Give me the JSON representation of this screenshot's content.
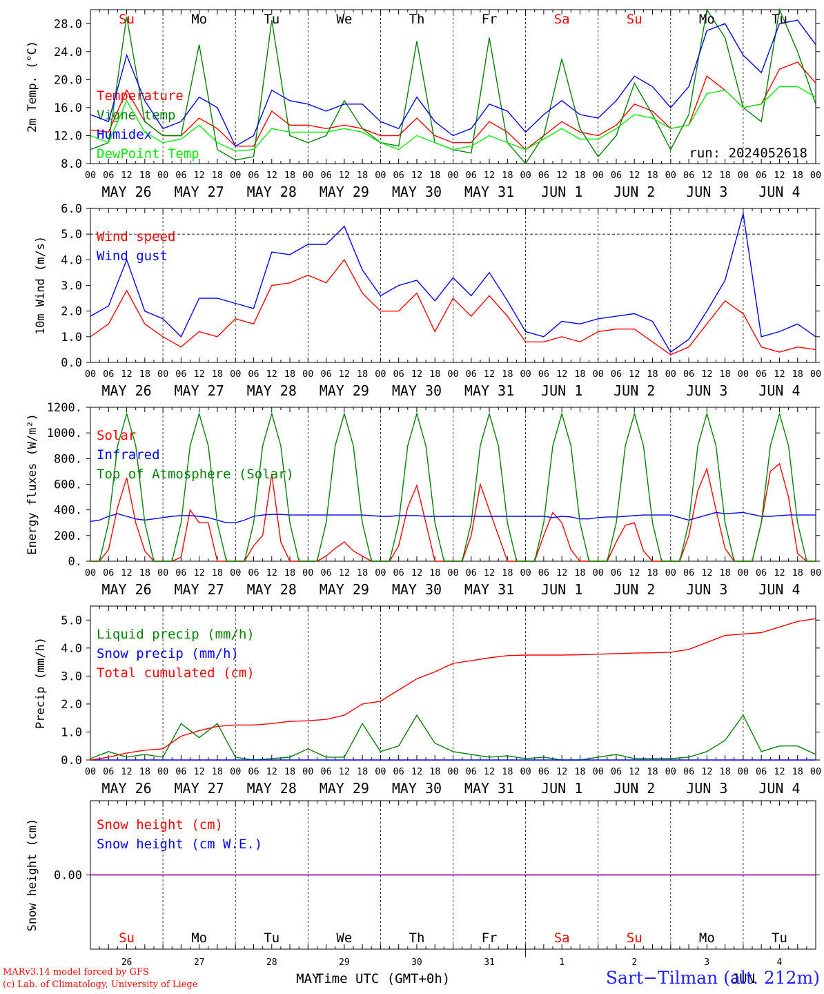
{
  "chart_data": [
    {
      "type": "line",
      "panel": "temperature",
      "ylabel": "2m Temp. (°C)",
      "ylim": [
        8,
        30
      ],
      "yticks": [
        "8.0",
        "12.0",
        "16.0",
        "20.0",
        "24.0",
        "28.0"
      ],
      "yticks_values": [
        8,
        12,
        16,
        20,
        24,
        28
      ],
      "annotation": "run: 2024052618",
      "day_labels": [
        {
          "label": "Su",
          "color": "#ff0000"
        },
        {
          "label": "Mo",
          "color": "#000000"
        },
        {
          "label": "Tu",
          "color": "#000000"
        },
        {
          "label": "We",
          "color": "#000000"
        },
        {
          "label": "Th",
          "color": "#000000"
        },
        {
          "label": "Fr",
          "color": "#000000"
        },
        {
          "label": "Sa",
          "color": "#ff0000"
        },
        {
          "label": "Su",
          "color": "#ff0000"
        },
        {
          "label": "Mo",
          "color": "#000000"
        },
        {
          "label": "Tu",
          "color": "#000000"
        }
      ],
      "x_hours": [
        0,
        6,
        12,
        18,
        24,
        30,
        36,
        42,
        48,
        54,
        60,
        66,
        72,
        78,
        84,
        90,
        96,
        102,
        108,
        114,
        120,
        126,
        132,
        138,
        144,
        150,
        156,
        162,
        168,
        174,
        180,
        186,
        192,
        198,
        204,
        210,
        216,
        222,
        228,
        234,
        240
      ],
      "series": [
        {
          "name": "Temperature",
          "color": "#ff0000",
          "values": [
            12.8,
            12.5,
            18.5,
            14,
            12,
            12,
            14.5,
            13,
            10.5,
            10.5,
            15.5,
            13.5,
            13.5,
            13,
            13.5,
            13,
            12,
            12,
            14.5,
            12,
            11,
            11,
            14,
            12.5,
            10,
            12,
            14,
            12.5,
            12,
            13.5,
            16.5,
            15.5,
            13,
            13.5,
            20.5,
            18.5,
            16,
            16.5,
            21.5,
            22.5,
            19.5
          ]
        },
        {
          "name": "Vigne temp",
          "color": "#008000",
          "values": [
            10,
            11,
            29,
            14,
            12,
            12,
            25,
            10,
            8.5,
            9,
            28.5,
            12,
            11,
            12,
            17,
            13,
            11,
            10.5,
            25.5,
            11,
            10,
            9.5,
            26,
            11,
            8,
            12,
            23,
            13,
            9,
            12,
            19.5,
            15,
            10,
            15,
            30,
            26,
            16,
            14,
            30,
            24,
            16.5
          ]
        },
        {
          "name": "Humidex",
          "color": "#0000ff",
          "values": [
            15,
            14,
            23.5,
            17,
            13,
            14,
            17.5,
            16,
            10.5,
            12,
            18.5,
            17,
            16.5,
            15.5,
            16.5,
            16.5,
            14,
            13,
            17.5,
            14,
            12,
            13,
            16.5,
            15.5,
            12.5,
            15,
            17,
            15,
            14.5,
            17,
            20.5,
            19,
            16,
            19,
            27,
            28,
            23.5,
            21,
            28,
            28.5,
            25
          ]
        },
        {
          "name": "DewPoint Temp",
          "color": "#00ee00",
          "values": [
            12,
            11,
            17,
            12.5,
            11,
            11.5,
            13.5,
            11,
            9.8,
            10,
            13,
            12.5,
            12.5,
            12.5,
            13,
            12.5,
            11,
            10,
            12,
            11,
            10,
            10.5,
            12,
            11,
            10,
            11.5,
            13,
            11.5,
            11.5,
            13,
            15,
            14.5,
            13,
            13.5,
            18,
            18.5,
            16,
            16.5,
            19,
            19,
            17.5
          ]
        }
      ]
    },
    {
      "type": "line",
      "panel": "wind",
      "ylabel": "10m Wind (m/s)",
      "ylim": [
        0,
        6
      ],
      "yticks": [
        "0.0",
        "1.0",
        "2.0",
        "3.0",
        "4.0",
        "5.0",
        "6.0"
      ],
      "yticks_values": [
        0,
        1,
        2,
        3,
        4,
        5,
        6
      ],
      "reference_line": 5.0,
      "x_hours": [
        0,
        6,
        12,
        18,
        24,
        30,
        36,
        42,
        48,
        54,
        60,
        66,
        72,
        78,
        84,
        90,
        96,
        102,
        108,
        114,
        120,
        126,
        132,
        138,
        144,
        150,
        156,
        162,
        168,
        174,
        180,
        186,
        192,
        198,
        204,
        210,
        216,
        222,
        228,
        234,
        240
      ],
      "series": [
        {
          "name": "Wind speed",
          "color": "#ff0000",
          "values": [
            1.0,
            1.5,
            2.8,
            1.5,
            1.0,
            0.6,
            1.2,
            1.0,
            1.7,
            1.5,
            3.0,
            3.1,
            3.4,
            3.1,
            4.0,
            2.7,
            2.0,
            2.0,
            2.7,
            1.2,
            2.5,
            1.8,
            2.6,
            1.8,
            0.8,
            0.8,
            1.0,
            0.8,
            1.2,
            1.3,
            1.3,
            0.8,
            0.3,
            0.6,
            1.5,
            2.4,
            1.9,
            0.6,
            0.4,
            0.6,
            0.5
          ]
        },
        {
          "name": "Wind gust",
          "color": "#0000ff",
          "values": [
            1.8,
            2.2,
            4.0,
            2.0,
            1.7,
            1.0,
            2.5,
            2.5,
            2.3,
            2.1,
            4.3,
            4.2,
            4.6,
            4.6,
            5.3,
            3.6,
            2.6,
            3.0,
            3.2,
            2.4,
            3.3,
            2.6,
            3.5,
            2.4,
            1.2,
            1.0,
            1.6,
            1.5,
            1.7,
            1.8,
            1.9,
            1.6,
            0.4,
            0.9,
            2.0,
            3.2,
            5.8,
            1.0,
            1.2,
            1.5,
            1.0
          ]
        }
      ]
    },
    {
      "type": "line",
      "panel": "energy",
      "ylabel": "Energy fluxes (W/m²)",
      "ylim": [
        0,
        1200
      ],
      "yticks": [
        "0.",
        "200.",
        "400.",
        "600.",
        "800.",
        "1000.",
        "1200."
      ],
      "yticks_values": [
        0,
        200,
        400,
        600,
        800,
        1000,
        1200
      ],
      "x_hours": [
        0,
        3,
        6,
        9,
        12,
        15,
        18,
        21,
        24,
        27,
        30,
        33,
        36,
        39,
        42,
        45,
        48,
        51,
        54,
        57,
        60,
        63,
        66,
        69,
        72,
        75,
        78,
        81,
        84,
        87,
        90,
        93,
        96,
        99,
        102,
        105,
        108,
        111,
        114,
        117,
        120,
        123,
        126,
        129,
        132,
        135,
        138,
        141,
        144,
        147,
        150,
        153,
        156,
        159,
        162,
        165,
        168,
        171,
        174,
        177,
        180,
        183,
        186,
        189,
        192,
        195,
        198,
        201,
        204,
        207,
        210,
        213,
        216,
        219,
        222,
        225,
        228,
        231,
        234,
        237,
        240
      ],
      "series": [
        {
          "name": "Solar",
          "color": "#ff0000",
          "values": [
            0,
            0,
            90,
            420,
            650,
            300,
            80,
            0,
            0,
            0,
            30,
            400,
            300,
            300,
            0,
            0,
            0,
            0,
            120,
            200,
            680,
            150,
            0,
            0,
            0,
            0,
            40,
            100,
            150,
            80,
            40,
            0,
            0,
            0,
            120,
            420,
            590,
            300,
            0,
            0,
            0,
            0,
            200,
            600,
            400,
            200,
            0,
            0,
            0,
            0,
            200,
            380,
            300,
            90,
            0,
            0,
            0,
            0,
            150,
            280,
            300,
            80,
            0,
            0,
            0,
            0,
            200,
            550,
            720,
            400,
            100,
            0,
            0,
            0,
            300,
            700,
            760,
            500,
            60,
            0,
            0
          ]
        },
        {
          "name": "Infrared",
          "color": "#0000ff",
          "values": [
            310,
            320,
            350,
            370,
            350,
            330,
            320,
            330,
            340,
            350,
            355,
            355,
            350,
            340,
            320,
            300,
            300,
            320,
            350,
            360,
            365,
            365,
            360,
            360,
            360,
            360,
            360,
            360,
            360,
            360,
            360,
            355,
            350,
            350,
            355,
            355,
            355,
            350,
            350,
            350,
            350,
            350,
            350,
            350,
            350,
            350,
            350,
            350,
            350,
            350,
            350,
            340,
            350,
            345,
            330,
            330,
            340,
            345,
            345,
            350,
            355,
            360,
            360,
            360,
            360,
            340,
            320,
            340,
            360,
            380,
            370,
            375,
            380,
            365,
            350,
            350,
            355,
            360,
            360,
            360,
            360
          ]
        },
        {
          "name": "Top of Atmosphere (Solar)",
          "color": "#008000",
          "values": [
            0,
            0,
            300,
            900,
            1150,
            900,
            300,
            0,
            0,
            0,
            300,
            900,
            1150,
            900,
            300,
            0,
            0,
            0,
            300,
            900,
            1150,
            900,
            300,
            0,
            0,
            0,
            300,
            900,
            1150,
            900,
            300,
            0,
            0,
            0,
            300,
            900,
            1150,
            900,
            300,
            0,
            0,
            0,
            300,
            900,
            1150,
            900,
            300,
            0,
            0,
            0,
            300,
            900,
            1150,
            900,
            300,
            0,
            0,
            0,
            300,
            900,
            1150,
            900,
            300,
            0,
            0,
            0,
            300,
            900,
            1150,
            900,
            300,
            0,
            0,
            0,
            300,
            900,
            1150,
            900,
            300,
            0,
            0
          ]
        }
      ]
    },
    {
      "type": "line",
      "panel": "precip",
      "ylabel": "Precip (mm/h)",
      "ylim": [
        0,
        5.5
      ],
      "yticks": [
        "0.0",
        "1.0",
        "2.0",
        "3.0",
        "4.0",
        "5.0"
      ],
      "yticks_values": [
        0,
        1,
        2,
        3,
        4,
        5
      ],
      "x_hours": [
        0,
        6,
        12,
        18,
        24,
        30,
        36,
        42,
        48,
        54,
        60,
        66,
        72,
        78,
        84,
        90,
        96,
        102,
        108,
        114,
        120,
        126,
        132,
        138,
        144,
        150,
        156,
        162,
        168,
        174,
        180,
        186,
        192,
        198,
        204,
        210,
        216,
        222,
        228,
        234,
        240
      ],
      "series": [
        {
          "name": "Liquid precip (mm/h)",
          "color": "#008000",
          "values": [
            0.05,
            0.3,
            0.1,
            0.2,
            0.1,
            1.3,
            0.8,
            1.3,
            0.1,
            0,
            0.05,
            0.1,
            0.4,
            0.1,
            0.1,
            1.3,
            0.3,
            0.5,
            1.6,
            0.6,
            0.3,
            0.2,
            0.1,
            0.15,
            0.05,
            0.1,
            0,
            0,
            0.1,
            0.2,
            0.05,
            0.05,
            0.05,
            0.1,
            0.3,
            0.7,
            1.6,
            0.3,
            0.5,
            0.5,
            0.2
          ]
        },
        {
          "name": "Snow precip (mm/h)",
          "color": "#0000ff",
          "values": [
            0,
            0,
            0,
            0,
            0,
            0,
            0,
            0,
            0,
            0,
            0,
            0,
            0,
            0,
            0,
            0,
            0,
            0,
            0,
            0,
            0,
            0,
            0,
            0,
            0,
            0,
            0,
            0,
            0,
            0,
            0,
            0,
            0,
            0,
            0,
            0,
            0,
            0,
            0,
            0,
            0
          ]
        },
        {
          "name": "Total cumulated (cm)",
          "color": "#ff0000",
          "values": [
            0,
            0.1,
            0.25,
            0.35,
            0.4,
            0.85,
            1.05,
            1.2,
            1.25,
            1.25,
            1.3,
            1.38,
            1.4,
            1.45,
            1.6,
            2.0,
            2.1,
            2.5,
            2.9,
            3.15,
            3.45,
            3.55,
            3.65,
            3.73,
            3.75,
            3.75,
            3.75,
            3.76,
            3.78,
            3.8,
            3.82,
            3.83,
            3.85,
            3.95,
            4.2,
            4.45,
            4.5,
            4.55,
            4.75,
            4.95,
            5.05
          ]
        }
      ]
    },
    {
      "type": "line",
      "panel": "snow",
      "ylabel": "Snow height (cm)",
      "ylim": [
        -0.01,
        0.01
      ],
      "yticks": [
        "0.00"
      ],
      "yticks_values": [
        0
      ],
      "x_hours": [
        0,
        240
      ],
      "series": [
        {
          "name": "Snow height (cm)",
          "color": "#ff0000",
          "values": [
            0,
            0
          ]
        },
        {
          "name": "Snow height (cm W.E.)",
          "color": "#0000ff",
          "values": [
            0,
            0
          ]
        }
      ]
    }
  ],
  "xaxis": {
    "hour_ticks": [
      "00",
      "06",
      "12",
      "18"
    ],
    "date_labels": [
      "MAY 26",
      "MAY 27",
      "MAY 28",
      "MAY 29",
      "MAY 30",
      "MAY 31",
      "JUN  1",
      "JUN  2",
      "JUN  3",
      "JUN  4"
    ],
    "bottom_day_names": [
      {
        "label": "Su",
        "color": "#ff0000"
      },
      {
        "label": "Mo",
        "color": "#000000"
      },
      {
        "label": "Tu",
        "color": "#000000"
      },
      {
        "label": "We",
        "color": "#000000"
      },
      {
        "label": "Th",
        "color": "#000000"
      },
      {
        "label": "Fr",
        "color": "#000000"
      },
      {
        "label": "Sa",
        "color": "#ff0000"
      },
      {
        "label": "Su",
        "color": "#ff0000"
      },
      {
        "label": "Mo",
        "color": "#000000"
      },
      {
        "label": "Tu",
        "color": "#000000"
      }
    ],
    "bottom_day_numbers": [
      "26",
      "27",
      "28",
      "29",
      "30",
      "31",
      "1",
      "2",
      "3",
      "4"
    ],
    "month_labels": [
      "MAY",
      "JUN"
    ],
    "title": "Time UTC (GMT+0h)"
  },
  "footer": {
    "credit_line1": "MARv3.14 model forced by GFS",
    "credit_line2": "(c) Lab. of Climatology, University of Liege",
    "station": "Sart−Tilman (alt. 212m)"
  }
}
